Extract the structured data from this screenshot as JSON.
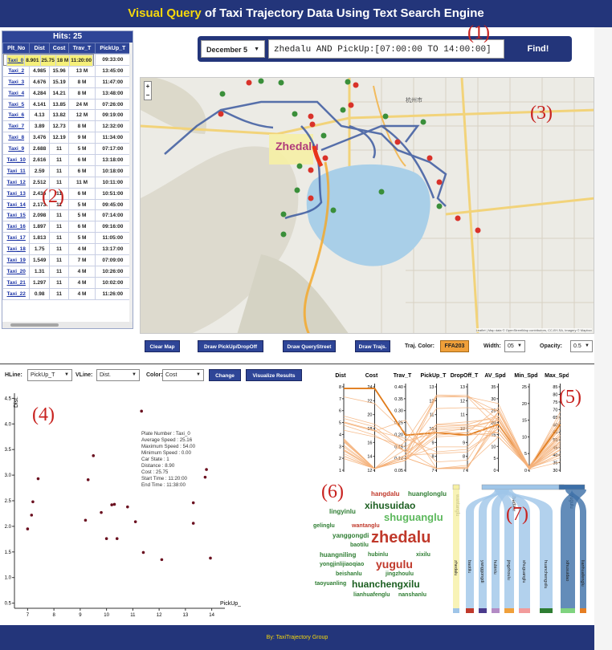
{
  "title": {
    "highlight": "Visual Query",
    "rest": " of Taxi Trajectory Data Using Text Search Engine"
  },
  "footer": "By: TaxiTrajectory Group",
  "hits": {
    "label": "Hits: 25",
    "columns": [
      "Plt_No",
      "Dist",
      "Cost",
      "Trav_T",
      "PickUp_T"
    ],
    "selected_index": 0,
    "rows": [
      [
        "Taxi_0",
        "8.901",
        "25.75",
        "18 M",
        "11:20:00"
      ],
      [
        "Taxi_1",
        "6.617",
        "20.04",
        "17 M",
        "09:33:00"
      ],
      [
        "Taxi_2",
        "4.985",
        "15.96",
        "13 M",
        "13:45:00"
      ],
      [
        "Taxi_3",
        "4.676",
        "15.19",
        "8 M",
        "11:47:00"
      ],
      [
        "Taxi_4",
        "4.284",
        "14.21",
        "8 M",
        "13:48:00"
      ],
      [
        "Taxi_5",
        "4.141",
        "13.85",
        "24 M",
        "07:26:00"
      ],
      [
        "Taxi_6",
        "4.13",
        "13.82",
        "12 M",
        "09:19:00"
      ],
      [
        "Taxi_7",
        "3.89",
        "12.73",
        "8 M",
        "12:32:00"
      ],
      [
        "Taxi_8",
        "3.476",
        "12.19",
        "9 M",
        "11:34:00"
      ],
      [
        "Taxi_9",
        "2.688",
        "11",
        "5 M",
        "07:17:00"
      ],
      [
        "Taxi_10",
        "2.616",
        "11",
        "6 M",
        "13:18:00"
      ],
      [
        "Taxi_11",
        "2.59",
        "11",
        "6 M",
        "10:18:00"
      ],
      [
        "Taxi_12",
        "2.512",
        "11",
        "11 M",
        "10:11:00"
      ],
      [
        "Taxi_13",
        "2.436",
        "11",
        "6 M",
        "10:51:00"
      ],
      [
        "Taxi_14",
        "2.173",
        "11",
        "5 M",
        "09:45:00"
      ],
      [
        "Taxi_15",
        "2.098",
        "11",
        "5 M",
        "07:14:00"
      ],
      [
        "Taxi_16",
        "1.897",
        "11",
        "6 M",
        "09:16:00"
      ],
      [
        "Taxi_17",
        "1.813",
        "11",
        "5 M",
        "11:05:00"
      ],
      [
        "Taxi_18",
        "1.75",
        "11",
        "4 M",
        "13:17:00"
      ],
      [
        "Taxi_19",
        "1.549",
        "11",
        "7 M",
        "07:09:00"
      ],
      [
        "Taxi_20",
        "1.31",
        "11",
        "4 M",
        "10:26:00"
      ],
      [
        "Taxi_21",
        "1.297",
        "11",
        "4 M",
        "10:02:00"
      ],
      [
        "Taxi_22",
        "0.98",
        "11",
        "4 M",
        "11:26:00"
      ]
    ]
  },
  "search": {
    "date": "December 5",
    "query": "zhedalu AND PickUp:[07:00:00 TO 14:00:00]",
    "find": "Find!"
  },
  "annotations": [
    "(1)",
    "(2)",
    "(3)",
    "(4)",
    "(5)",
    "(6)",
    "(7)"
  ],
  "map": {
    "label": "Zhedalu",
    "city": "杭州市",
    "zoom_in": "+",
    "zoom_out": "−",
    "attribution": "Leaflet | Map data © OpenStreetMap contributors, CC-BY-SA, Imagery © Mapbox"
  },
  "controls": {
    "clear": "Clear Map",
    "draw_pickup": "Draw PickUp/DropOff",
    "draw_query": "Draw QueryStreet",
    "draw_trajs": "Draw Trajs.",
    "color_label": "Traj. Color:",
    "color_value": "FFA203",
    "width_label": "Width:",
    "width_value": "05",
    "opacity_label": "Opacity:",
    "opacity_value": "0.5"
  },
  "scatter_ctrl": {
    "hline_label": "HLine:",
    "hline": "PickUp_T",
    "vline_label": "VLine:",
    "vline": "Dist.",
    "color_label": "Color:",
    "color": "Cost",
    "change": "Change",
    "visualize": "Visualize Results"
  },
  "tooltip": [
    "Plate Number : Taxi_0",
    "Average Speed : 25.16",
    "Maximum Speed : 54.00",
    "Minimum Speed : 0.00",
    "Car State : 1",
    "Distance : 8.90",
    "Cost : 25.75",
    "Start Time : 11:20:00",
    "End Time : 11:38:00"
  ],
  "parallel_axes": [
    {
      "name": "Dist",
      "ticks": [
        "8",
        "7",
        "6",
        "5",
        "4",
        "3",
        "2",
        "1"
      ]
    },
    {
      "name": "Cost",
      "ticks": [
        "24",
        "22",
        "20",
        "18",
        "16",
        "14",
        "12"
      ]
    },
    {
      "name": "Trav_T",
      "ticks": [
        "0.40",
        "0.35",
        "0.30",
        "0.25",
        "0.20",
        "0.15",
        "0.10",
        "0.05"
      ]
    },
    {
      "name": "PickUp_T",
      "ticks": [
        "13",
        "12",
        "11",
        "10",
        "9",
        "8",
        "7"
      ]
    },
    {
      "name": "DropOff_T",
      "ticks": [
        "13",
        "12",
        "11",
        "10",
        "9",
        "8",
        "7"
      ]
    },
    {
      "name": "AV_Spd",
      "ticks": [
        "35",
        "30",
        "25",
        "20",
        "15",
        "10",
        "5",
        "0"
      ]
    },
    {
      "name": "Min_Spd",
      "ticks": [
        "25",
        "20",
        "15",
        "10",
        "5",
        "0"
      ]
    },
    {
      "name": "Max_Spd",
      "ticks": [
        "85",
        "80",
        "75",
        "70",
        "65",
        "60",
        "55",
        "50",
        "45",
        "40",
        "35",
        "30"
      ]
    }
  ],
  "word_cloud": [
    {
      "t": "hangdalu",
      "c": "#c0392b",
      "s": 8
    },
    {
      "t": "huanglonglu",
      "c": "#2e7d32",
      "s": 8
    },
    {
      "t": "xihusuidao",
      "c": "#1b5e20",
      "s": 12
    },
    {
      "t": "lingyinlu",
      "c": "#2e7d32",
      "s": 8
    },
    {
      "t": "shuguanglu",
      "c": "#5cb85c",
      "s": 13
    },
    {
      "t": "gelinglu",
      "c": "#2e7d32",
      "s": 7
    },
    {
      "t": "wantanglu",
      "c": "#c0392b",
      "s": 7
    },
    {
      "t": "yanggongdi",
      "c": "#2e7d32",
      "s": 8
    },
    {
      "t": "zhedalu",
      "c": "#c0392b",
      "s": 20
    },
    {
      "t": "baotilu",
      "c": "#2e7d32",
      "s": 7
    },
    {
      "t": "huangniling",
      "c": "#2e7d32",
      "s": 8
    },
    {
      "t": "hubinlu",
      "c": "#2e7d32",
      "s": 7
    },
    {
      "t": "xixilu",
      "c": "#2e7d32",
      "s": 7
    },
    {
      "t": "yongjinlijiaoqiao",
      "c": "#2e7d32",
      "s": 7
    },
    {
      "t": "yugulu",
      "c": "#c0392b",
      "s": 14
    },
    {
      "t": "beishanlu",
      "c": "#2e7d32",
      "s": 7
    },
    {
      "t": "jingzhoulu",
      "c": "#2e7d32",
      "s": 7
    },
    {
      "t": "taoyuanling",
      "c": "#2e7d32",
      "s": 7
    },
    {
      "t": "huanchengxilu",
      "c": "#1b5e20",
      "s": 12
    },
    {
      "t": "lianhuafenglu",
      "c": "#2e7d32",
      "s": 7
    },
    {
      "t": "nanshanlu",
      "c": "#2e7d32",
      "s": 7
    }
  ],
  "sankey": {
    "top_labels": [
      "wantanglu",
      "zhedalu",
      "yugulu"
    ],
    "bottom_labels": [
      "zhedalu",
      "baotilu",
      "yanggongdi",
      "hubinlu",
      "jingzhoulu",
      "shuguanglu",
      "huanchengxilu",
      "xihusuidao",
      "lianhuafenglu"
    ],
    "colors": [
      "#9fc5e8",
      "#c0392b",
      "#4a3a8c",
      "#b38bc5",
      "#f0a03a",
      "#f29b9b",
      "#2e7d32",
      "#7fd37f",
      "#e67e22"
    ]
  },
  "chart_data": {
    "type": "scatter",
    "title": "",
    "xlabel": "PickUp_T",
    "ylabel": "Dist.",
    "xlim": [
      6.5,
      14.5
    ],
    "ylim": [
      0.4,
      4.6
    ],
    "x_ticks": [
      "7",
      "8",
      "9",
      "10",
      "11",
      "12",
      "13",
      "14"
    ],
    "y_ticks": [
      "0.5",
      "1.0",
      "1.5",
      "2.0",
      "2.5",
      "3.0",
      "3.5",
      "4.0",
      "4.5"
    ],
    "points": [
      [
        7.0,
        1.95
      ],
      [
        7.2,
        2.48
      ],
      [
        7.15,
        2.22
      ],
      [
        7.4,
        2.93
      ],
      [
        9.2,
        2.12
      ],
      [
        9.3,
        2.91
      ],
      [
        9.5,
        3.38
      ],
      [
        9.8,
        2.27
      ],
      [
        10.0,
        1.76
      ],
      [
        10.2,
        2.42
      ],
      [
        10.3,
        2.43
      ],
      [
        10.4,
        1.76
      ],
      [
        10.8,
        2.38
      ],
      [
        11.1,
        2.09
      ],
      [
        11.4,
        1.49
      ],
      [
        12.1,
        1.35
      ],
      [
        13.3,
        2.46
      ],
      [
        13.3,
        2.06
      ],
      [
        13.75,
        2.96
      ],
      [
        13.8,
        3.11
      ],
      [
        13.95,
        1.38
      ],
      [
        11.33,
        4.25
      ]
    ],
    "point_color": "#6b1020"
  }
}
